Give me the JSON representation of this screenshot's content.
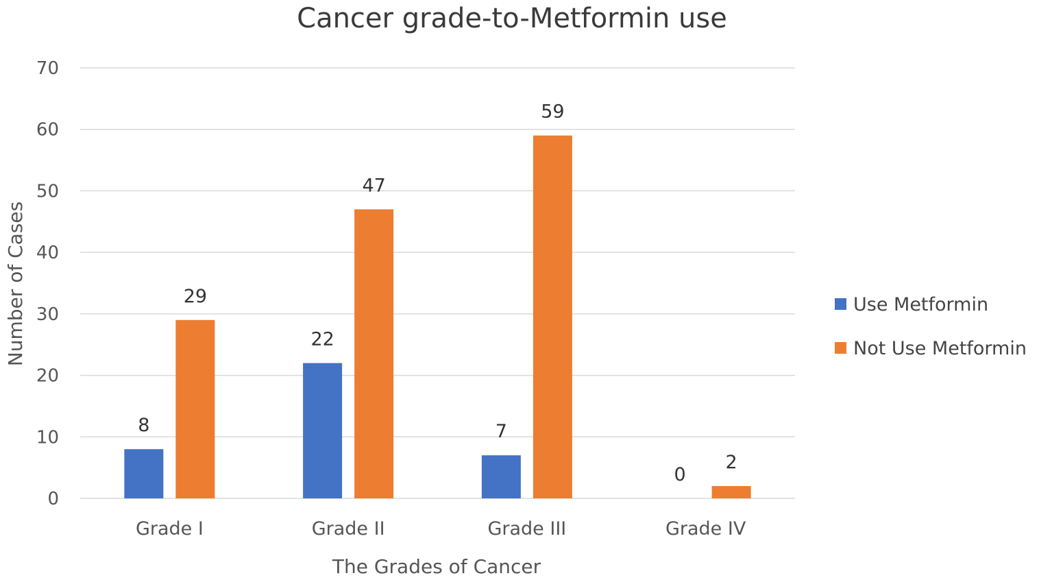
{
  "chart_data": {
    "type": "bar",
    "title": "Cancer grade-to-Metformin use",
    "xlabel": "The Grades of Cancer",
    "ylabel": "Number of Cases",
    "categories": [
      "Grade I",
      "Grade II",
      "Grade III",
      "Grade IV"
    ],
    "series": [
      {
        "name": "Use Metformin",
        "values": [
          8,
          22,
          7,
          0
        ],
        "color": "#4472c4"
      },
      {
        "name": "Not Use Metformin",
        "values": [
          29,
          47,
          59,
          2
        ],
        "color": "#ed7d31"
      }
    ],
    "ylim": [
      0,
      70
    ],
    "yticks": [
      0,
      10,
      20,
      30,
      40,
      50,
      60,
      70
    ],
    "grid": true,
    "legend": "right"
  }
}
